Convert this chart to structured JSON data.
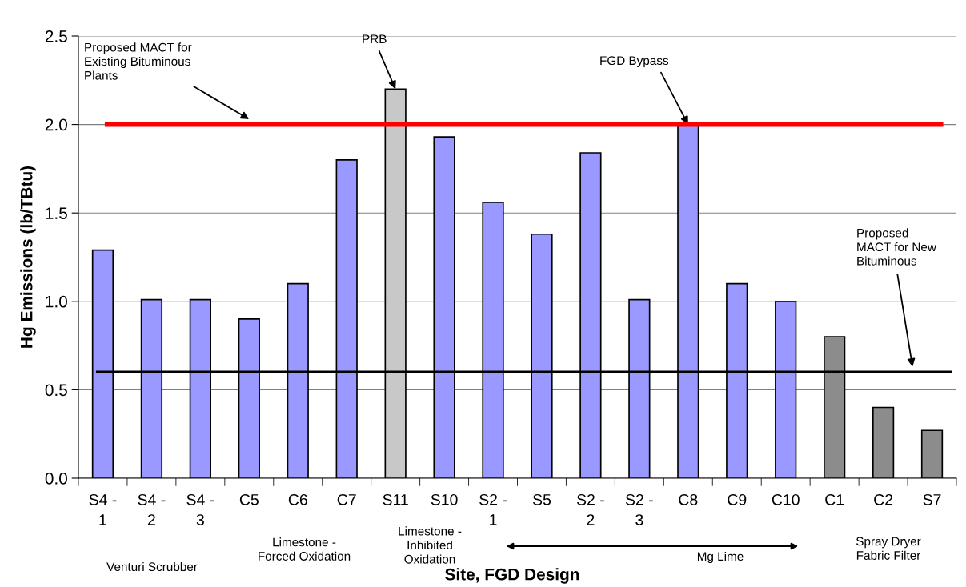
{
  "chart_data": {
    "type": "bar",
    "xlabel": "Site, FGD Design",
    "ylabel": "Hg Emissions (lb/TBtu)",
    "categories": [
      "S4 -\n1",
      "S4 -\n2",
      "S4 -\n3",
      "C5",
      "C6",
      "C7",
      "S11",
      "S10",
      "S2 -\n1",
      "S5",
      "S2 -\n2",
      "S2 -\n3",
      "C8",
      "C9",
      "C10",
      "C1",
      "C2",
      "S7"
    ],
    "values": [
      1.29,
      1.01,
      1.01,
      0.9,
      1.1,
      1.8,
      2.2,
      1.93,
      1.56,
      1.38,
      1.84,
      1.01,
      2.0,
      1.1,
      1.0,
      0.8,
      0.4,
      0.27
    ],
    "colors": [
      "#9999ff",
      "#9999ff",
      "#9999ff",
      "#9999ff",
      "#9999ff",
      "#9999ff",
      "#c8c8c8",
      "#9999ff",
      "#9999ff",
      "#9999ff",
      "#9999ff",
      "#9999ff",
      "#9999ff",
      "#9999ff",
      "#9999ff",
      "#8c8c8c",
      "#8c8c8c",
      "#8c8c8c"
    ],
    "ylim": [
      0,
      2.5
    ],
    "yticks": [
      {
        "value": 0,
        "label": "0.0"
      },
      {
        "value": 0.5,
        "label": "0.5"
      },
      {
        "value": 1,
        "label": "1.0"
      },
      {
        "value": 1.5,
        "label": "1.5"
      },
      {
        "value": 2,
        "label": "2.0"
      },
      {
        "value": 2.5,
        "label": "2.5"
      }
    ],
    "grid": "y",
    "ref_lines": [
      {
        "axis": "y",
        "value": 2.0,
        "label": "Proposed MACT for\nExisting Bituminous\nPlants",
        "color": "#ff0000"
      },
      {
        "axis": "y",
        "value": 0.6,
        "label": "Proposed\nMACT for New\nBituminous",
        "color": "#000000"
      }
    ],
    "annotations": [
      {
        "text": "PRB",
        "x": "S11",
        "y": 2.2
      },
      {
        "text": "FGD Bypass",
        "x": "C8",
        "y": 2.0
      },
      "Venturi Scrubber",
      "Limestone -\nForced Oxidation",
      "Limestone -\nInhibited\nOxidation",
      "Mg Lime",
      "Spray Dryer\nFabric Filter"
    ]
  }
}
